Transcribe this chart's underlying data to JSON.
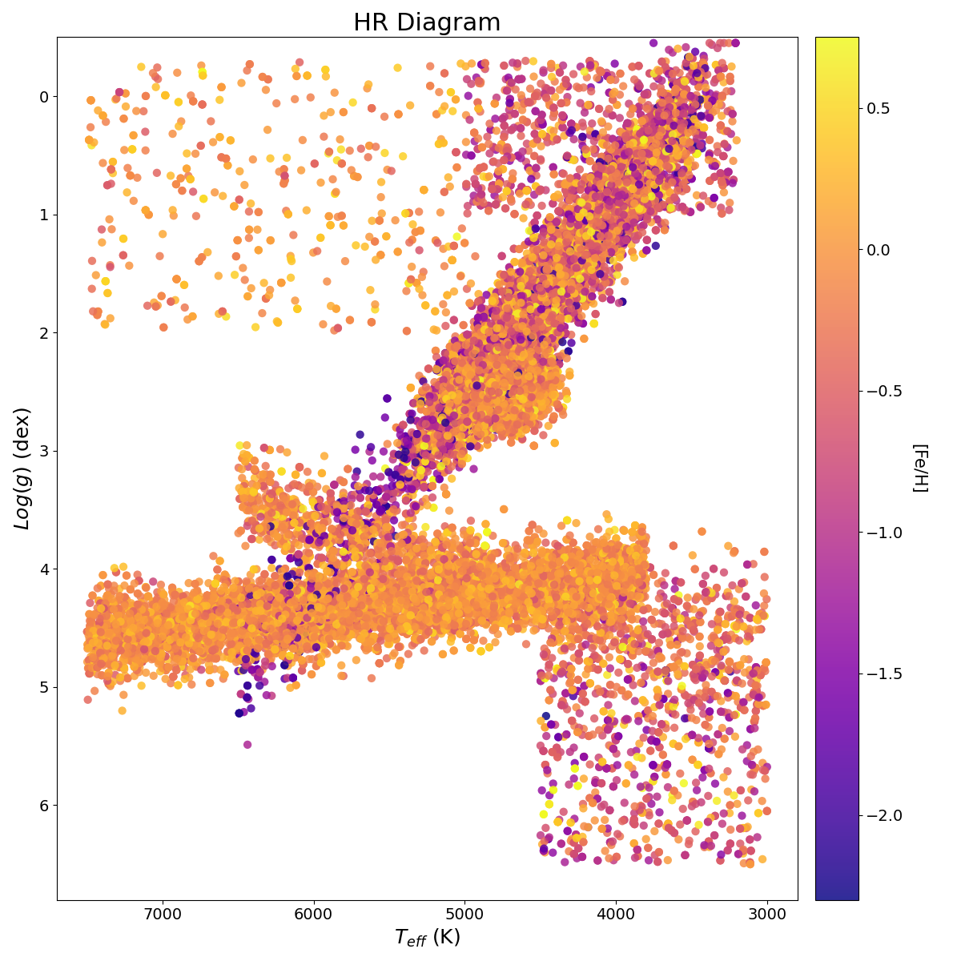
{
  "title": "HR Diagram",
  "xlabel": "$T_{eff}$ (K)",
  "ylabel": "$Log(g)$ (dex)",
  "colorbar_label": "[Fe/H]",
  "xlim": [
    7700,
    2800
  ],
  "ylim": [
    6.8,
    -0.5
  ],
  "xticks": [
    7000,
    6000,
    5000,
    4000,
    3000
  ],
  "yticks": [
    0,
    1,
    2,
    3,
    4,
    5,
    6
  ],
  "cmap": "plasma",
  "vmin": -2.3,
  "vmax": 0.75,
  "colorbar_ticks": [
    0.5,
    0.0,
    -0.5,
    -1.0,
    -1.5,
    -2.0
  ],
  "n_points": 25000,
  "marker_size": 55,
  "alpha": 0.85,
  "seed": 42,
  "figsize": [
    12,
    12
  ],
  "dpi": 100,
  "title_fontsize": 22,
  "label_fontsize": 18,
  "tick_fontsize": 14,
  "colorbar_fontsize": 15
}
